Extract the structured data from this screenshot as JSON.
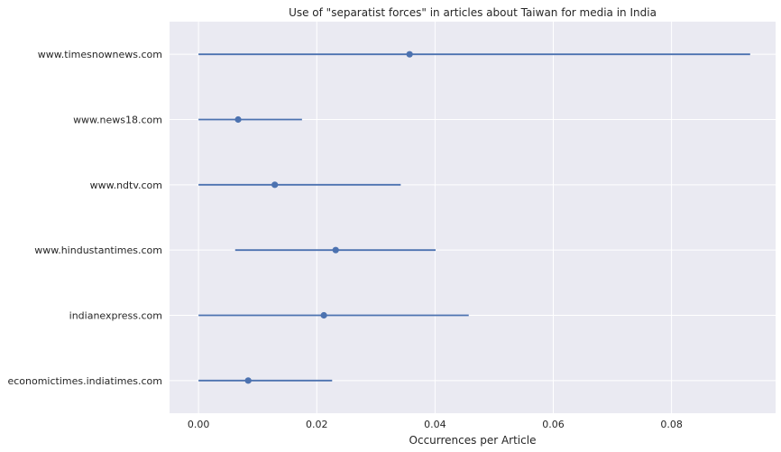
{
  "chart_data": {
    "type": "pointplot",
    "orientation": "horizontal",
    "title": "Use of \"separatist forces\" in articles about Taiwan for media in India",
    "xlabel": "Occurrences per Article",
    "ylabel": "",
    "xlim": [
      -0.0049,
      0.0976
    ],
    "xticks": [
      0.0,
      0.02,
      0.04,
      0.06,
      0.08
    ],
    "xtick_labels": [
      "0.00",
      "0.02",
      "0.04",
      "0.06",
      "0.08"
    ],
    "grid": true,
    "legend": "none",
    "colors": {
      "background": "#eaeaf2",
      "grid": "#ffffff",
      "series": "#4c72b0"
    },
    "categories": [
      "www.timesnownews.com",
      "www.news18.com",
      "www.ndtv.com",
      "www.hindustantimes.com",
      "indianexpress.com",
      "economictimes.indiatimes.com"
    ],
    "values": [
      0.0357,
      0.0067,
      0.0129,
      0.0232,
      0.0212,
      0.0084
    ],
    "ci_low": [
      0.0,
      0.0,
      0.0,
      0.0062,
      0.0,
      0.0
    ],
    "ci_high": [
      0.0933,
      0.0175,
      0.0342,
      0.0401,
      0.0457,
      0.0226
    ]
  }
}
